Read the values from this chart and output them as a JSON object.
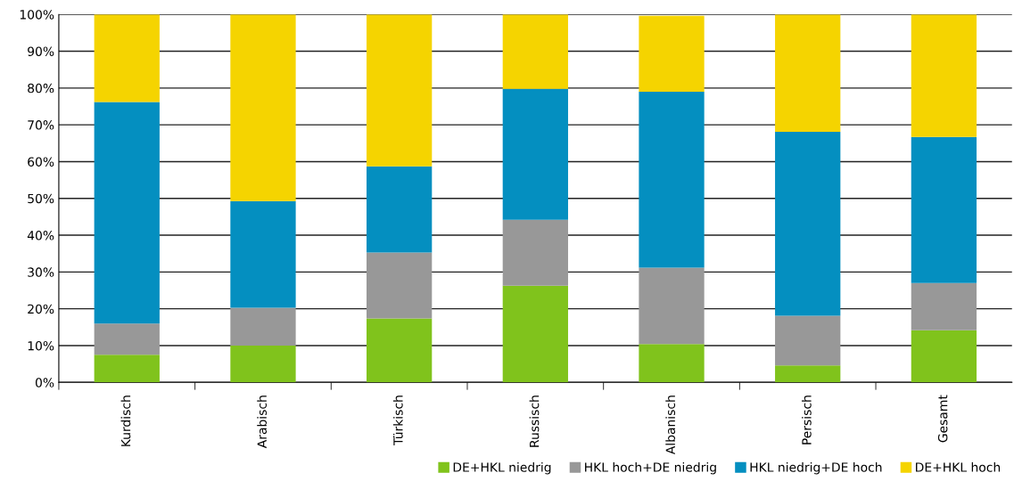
{
  "chart_data": {
    "type": "bar",
    "stacked": true,
    "categories": [
      "Kurdisch",
      "Arabisch",
      "Türkisch",
      "Russisch",
      "Albanisch",
      "Persisch",
      "Gesamt"
    ],
    "series": [
      {
        "name": "DE+HKL niedrig",
        "color": "#80c31c",
        "values": [
          7.5,
          10,
          17.4,
          26.3,
          10.4,
          4.6,
          14.2
        ]
      },
      {
        "name": "HKL hoch+DE niedrig",
        "color": "#989898",
        "values": [
          8.5,
          10.3,
          17.9,
          17.9,
          20.8,
          13.5,
          12.8
        ]
      },
      {
        "name": "HKL niedrig+DE hoch",
        "color": "#048fc0",
        "values": [
          60.2,
          29,
          23.4,
          35.6,
          47.8,
          50,
          39.7
        ]
      },
      {
        "name": "DE+HKL hoch",
        "color": "#f5d400",
        "values": [
          23.8,
          50.7,
          41.3,
          20.2,
          20.6,
          31.9,
          33.3
        ]
      }
    ],
    "ylim": [
      0,
      100
    ],
    "yticks": [
      {
        "value": 0,
        "label": "0%"
      },
      {
        "value": 10,
        "label": "10%"
      },
      {
        "value": 20,
        "label": "20%"
      },
      {
        "value": 30,
        "label": "30%"
      },
      {
        "value": 40,
        "label": "40%"
      },
      {
        "value": 50,
        "label": "50%"
      },
      {
        "value": 60,
        "label": "60%"
      },
      {
        "value": 70,
        "label": "70%"
      },
      {
        "value": 80,
        "label": "80%"
      },
      {
        "value": 90,
        "label": "90%"
      },
      {
        "value": 100,
        "label": "100%"
      }
    ],
    "grid": "y",
    "legend": "bottom right"
  }
}
